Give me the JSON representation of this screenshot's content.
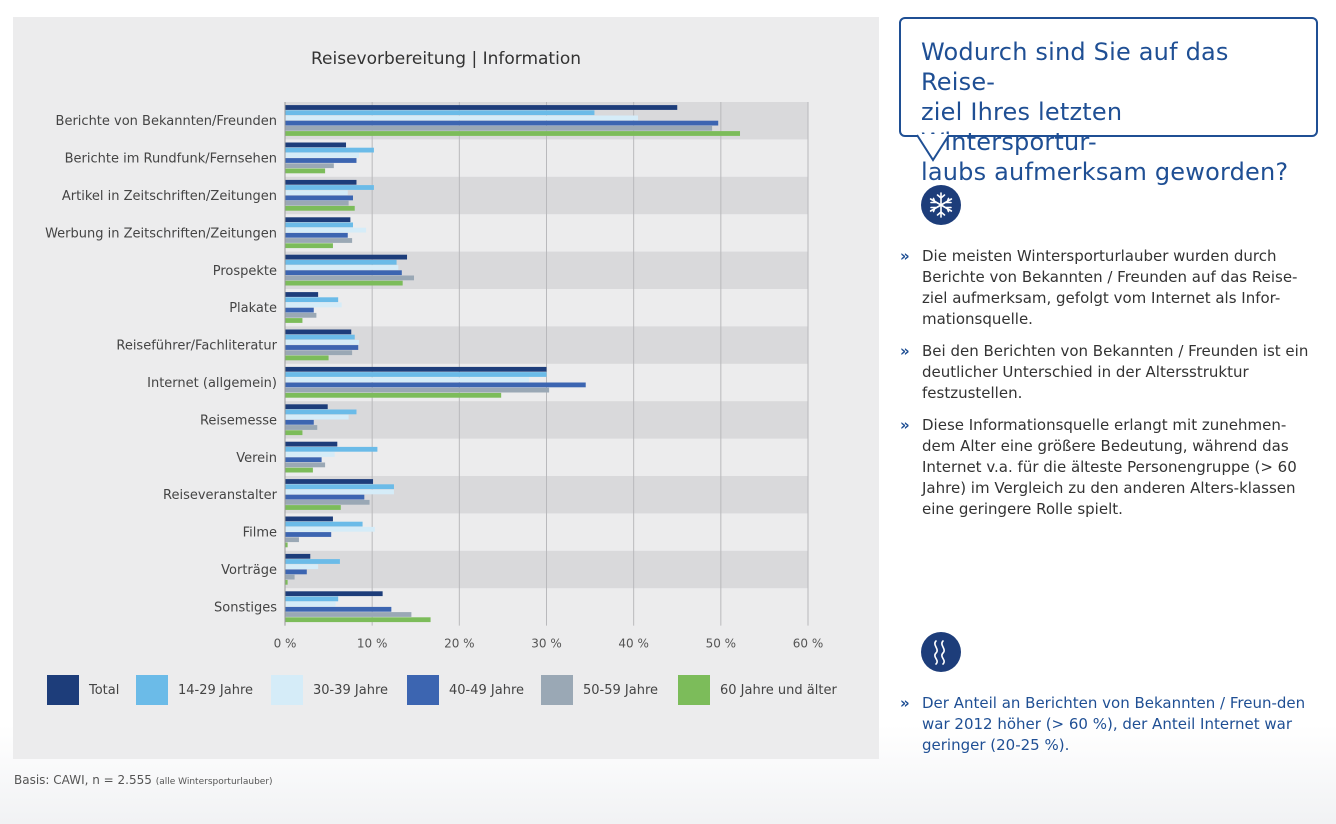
{
  "chart_data": {
    "type": "bar",
    "orientation": "horizontal",
    "title": "Reisevorbereitung | Information",
    "categories": [
      "Berichte von Bekannten/Freunden",
      "Berichte im Rundfunk/Fernsehen",
      "Artikel in Zeitschriften/Zeitungen",
      "Werbung in Zeitschriften/Zeitungen",
      "Prospekte",
      "Plakate",
      "Reiseführer/Fachliteratur",
      "Internet (allgemein)",
      "Reisemesse",
      "Verein",
      "Reiseveranstalter",
      "Filme",
      "Vorträge",
      "Sonstiges"
    ],
    "series": [
      {
        "name": "Total",
        "color": "#1d3d7a",
        "values": [
          45,
          7,
          8.2,
          7.5,
          14,
          3.8,
          7.6,
          30,
          4.9,
          6,
          10.1,
          5.5,
          2.9,
          11.2
        ]
      },
      {
        "name": "14-29 Jahre",
        "color": "#6bbbe8",
        "values": [
          35.5,
          10.2,
          10.2,
          7.8,
          12.8,
          6.1,
          8,
          30,
          8.2,
          10.6,
          12.5,
          8.9,
          6.3,
          6.1
        ]
      },
      {
        "name": "30-39 Jahre",
        "color": "#d5ecf8",
        "values": [
          40.5,
          8.5,
          7.2,
          9.3,
          13,
          6.5,
          8.5,
          28,
          7.3,
          5.7,
          12.5,
          10.3,
          3.8,
          5.8
        ]
      },
      {
        "name": "40-49 Jahre",
        "color": "#3c65b1",
        "values": [
          49.7,
          8.2,
          7.8,
          7.2,
          13.4,
          3.3,
          8.4,
          34.5,
          3.3,
          4.2,
          9.1,
          5.3,
          2.5,
          12.2
        ]
      },
      {
        "name": "50-59 Jahre",
        "color": "#9aa8b5",
        "values": [
          49,
          5.6,
          7.3,
          7.7,
          14.8,
          3.6,
          7.7,
          30.3,
          3.7,
          4.6,
          9.7,
          1.6,
          1.1,
          14.5
        ]
      },
      {
        "name": "60 Jahre und älter",
        "color": "#7cbc5a",
        "values": [
          52.2,
          4.6,
          8,
          5.5,
          13.5,
          2,
          5,
          24.8,
          2,
          3.2,
          6.4,
          0.3,
          0.3,
          16.7
        ]
      }
    ],
    "xlim": [
      0,
      60
    ],
    "xticks": [
      "0 %",
      "10 %",
      "20 %",
      "30 %",
      "40 %",
      "50 %",
      "60 %"
    ],
    "grid": true,
    "legend_position": "bottom"
  },
  "basis": {
    "main": "Basis: CAWI, n = 2.555",
    "small": "(alle Wintersporturlauber)"
  },
  "question": "Wodurch sind Sie auf das Reise-ziel Ihres letzten Wintersportur-laubs aufmerksam geworden?",
  "question_lines": [
    "Wodurch sind Sie auf das Reise-",
    "ziel Ihres letzten Wintersportur-",
    "laubs aufmerksam geworden?"
  ],
  "icons": {
    "snow": "snowflake-icon",
    "waves": "heat-waves-icon"
  },
  "bullets_main": [
    "Die meisten Wintersporturlauber wurden durch Berichte von Bekannten / Freunden auf das Reise-ziel aufmerksam, gefolgt vom Internet als Infor-mationsquelle.",
    "Bei den Berichten von Bekannten / Freunden ist ein deutlicher Unterschied in der Altersstruktur festzustellen.",
    "Diese Informationsquelle erlangt mit zunehmen-dem Alter eine größere Bedeutung, während das Internet v.a. für die älteste Personengruppe (> 60 Jahre) im Vergleich zu den anderen Alters-klassen eine geringere Rolle spielt."
  ],
  "bullets_secondary": [
    "Der Anteil an Berichten von Bekannten / Freun-den war 2012 höher (> 60 %), der Anteil Internet war geringer (20-25 %)."
  ],
  "bullet_marker": "»",
  "accent_color": "#1f4f94"
}
